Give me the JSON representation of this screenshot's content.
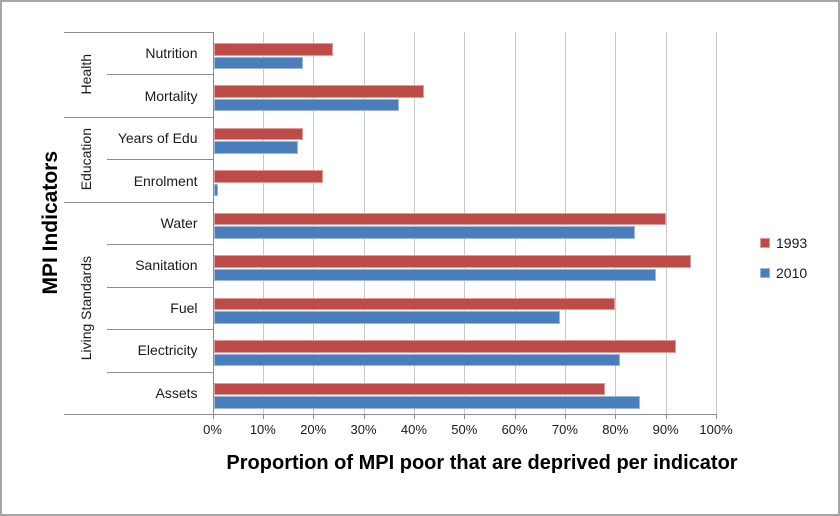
{
  "chart_data": {
    "type": "bar",
    "orientation": "horizontal",
    "title": "",
    "xlabel": "Proportion of MPI poor that are deprived per indicator",
    "ylabel": "MPI Indicators",
    "x_ticks": [
      "0%",
      "10%",
      "20%",
      "30%",
      "40%",
      "50%",
      "60%",
      "70%",
      "80%",
      "90%",
      "100%"
    ],
    "xlim": [
      0,
      100
    ],
    "grid": true,
    "legend_position": "right",
    "groups": [
      {
        "label": "Health",
        "categories": [
          "Nutrition",
          "Mortality"
        ]
      },
      {
        "label": "Education",
        "categories": [
          "Years of Edu",
          "Enrolment"
        ]
      },
      {
        "label": "Living Standards",
        "categories": [
          "Water",
          "Sanitation",
          "Fuel",
          "Electricity",
          "Assets"
        ]
      }
    ],
    "categories": [
      "Nutrition",
      "Mortality",
      "Years of Edu",
      "Enrolment",
      "Water",
      "Sanitation",
      "Fuel",
      "Electricity",
      "Assets"
    ],
    "series": [
      {
        "name": "1993",
        "color": "#be4b48",
        "values": [
          24,
          42,
          18,
          22,
          90,
          95,
          80,
          92,
          78
        ]
      },
      {
        "name": "2010",
        "color": "#4a7ebb",
        "values": [
          18,
          37,
          17,
          1,
          84,
          88,
          69,
          81,
          85
        ]
      }
    ]
  },
  "colors": {
    "gridline": "#c9c9c9",
    "axis": "#8c8c8c",
    "frame_border": "#a6a6a6",
    "background": "#ffffff",
    "text": "#1a1a1a"
  }
}
